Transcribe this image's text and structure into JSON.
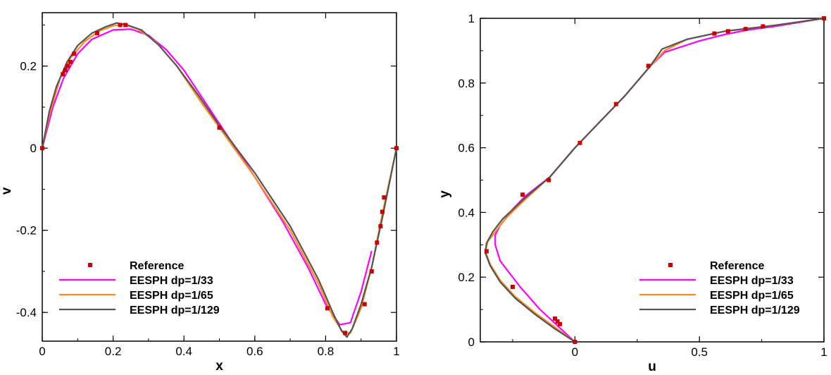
{
  "colors": {
    "reference": "#cc0000",
    "dp33": "#ff00ff",
    "dp65": "#ff8c1a",
    "dp129": "#555555"
  },
  "chart_data": [
    {
      "type": "line",
      "xlabel": "x",
      "ylabel": "v",
      "xlim": [
        0,
        1
      ],
      "ylim": [
        -0.47,
        0.33
      ],
      "xticks": [
        0,
        0.2,
        0.4,
        0.6,
        0.8,
        1
      ],
      "xtick_labels": [
        "0",
        "0.2",
        "0.4",
        "0.6",
        "0.8",
        "1"
      ],
      "yticks": [
        -0.4,
        -0.2,
        0,
        0.2
      ],
      "ytick_labels": [
        "-0.4",
        "-0.2",
        "0",
        "0.2"
      ],
      "legend_position": "bottom-left",
      "legend": [
        "Reference",
        "EESPH dp=1/33",
        "EESPH dp=1/65",
        "EESPH dp=1/129"
      ],
      "reference": {
        "x": [
          0,
          0.058,
          0.065,
          0.072,
          0.08,
          0.09,
          0.155,
          0.22,
          0.235,
          0.5,
          0.805,
          0.855,
          0.91,
          0.93,
          0.945,
          0.955,
          0.96,
          0.965,
          1.0
        ],
        "y": [
          0,
          0.18,
          0.19,
          0.2,
          0.21,
          0.23,
          0.28,
          0.3,
          0.3,
          0.05,
          -0.39,
          -0.45,
          -0.38,
          -0.3,
          -0.23,
          -0.19,
          -0.155,
          -0.12,
          0
        ]
      },
      "series": [
        {
          "name": "EESPH dp=1/33",
          "x": [
            0,
            0.03,
            0.06,
            0.1,
            0.14,
            0.2,
            0.25,
            0.3,
            0.35,
            0.4,
            0.5,
            0.6,
            0.68,
            0.75,
            0.8,
            0.84,
            0.87,
            0.9,
            0.93
          ],
          "y": [
            0,
            0.1,
            0.17,
            0.23,
            0.265,
            0.288,
            0.29,
            0.275,
            0.24,
            0.19,
            0.06,
            -0.07,
            -0.18,
            -0.29,
            -0.38,
            -0.43,
            -0.425,
            -0.35,
            -0.25
          ]
        },
        {
          "name": "EESPH dp=1/65",
          "x": [
            0,
            0.02,
            0.05,
            0.08,
            0.12,
            0.16,
            0.2,
            0.23,
            0.27,
            0.32,
            0.38,
            0.45,
            0.5,
            0.6,
            0.7,
            0.78,
            0.82,
            0.85,
            0.87,
            0.9,
            0.93,
            0.96,
            1.0
          ],
          "y": [
            0,
            0.08,
            0.17,
            0.22,
            0.26,
            0.285,
            0.298,
            0.302,
            0.29,
            0.26,
            0.2,
            0.11,
            0.05,
            -0.07,
            -0.2,
            -0.33,
            -0.41,
            -0.45,
            -0.45,
            -0.39,
            -0.29,
            -0.16,
            0
          ]
        },
        {
          "name": "EESPH dp=1/129",
          "x": [
            0,
            0.02,
            0.04,
            0.07,
            0.1,
            0.14,
            0.18,
            0.21,
            0.24,
            0.28,
            0.33,
            0.38,
            0.44,
            0.5,
            0.6,
            0.7,
            0.78,
            0.82,
            0.845,
            0.86,
            0.875,
            0.9,
            0.93,
            0.96,
            1.0
          ],
          "y": [
            0,
            0.09,
            0.15,
            0.21,
            0.25,
            0.28,
            0.296,
            0.305,
            0.3,
            0.288,
            0.25,
            0.2,
            0.13,
            0.055,
            -0.06,
            -0.19,
            -0.32,
            -0.4,
            -0.445,
            -0.46,
            -0.44,
            -0.38,
            -0.29,
            -0.17,
            0
          ]
        }
      ]
    },
    {
      "type": "line",
      "xlabel": "u",
      "ylabel": "y",
      "xlim": [
        -0.38,
        1.0
      ],
      "ylim": [
        0,
        1
      ],
      "xticks": [
        0,
        0.5,
        1
      ],
      "xtick_labels": [
        "0",
        "0.5",
        "1"
      ],
      "yticks": [
        0,
        0.2,
        0.4,
        0.6,
        0.8,
        1
      ],
      "ytick_labels": [
        "0",
        "0.2",
        "0.4",
        "0.6",
        "0.8",
        "1"
      ],
      "legend_position": "bottom-right",
      "legend": [
        "Reference",
        "EESPH dp=1/33",
        "EESPH dp=1/65",
        "EESPH dp=1/129"
      ],
      "reference": {
        "x": [
          1.0,
          0.755,
          0.685,
          0.615,
          0.56,
          0.295,
          0.165,
          0.02,
          -0.105,
          -0.21,
          -0.355,
          -0.25,
          -0.08,
          -0.07,
          -0.06,
          0
        ],
        "y": [
          1.0,
          0.975,
          0.967,
          0.96,
          0.953,
          0.853,
          0.735,
          0.615,
          0.5,
          0.455,
          0.28,
          0.17,
          0.072,
          0.063,
          0.055,
          0
        ]
      },
      "series": [
        {
          "name": "EESPH dp=1/33",
          "x": [
            0,
            -0.07,
            -0.14,
            -0.22,
            -0.3,
            -0.32,
            -0.32,
            -0.3,
            -0.25,
            -0.2,
            -0.1,
            0,
            0.1,
            0.2,
            0.3,
            0.36,
            0.5,
            0.6,
            0.7,
            0.8,
            1.0
          ],
          "y": [
            0,
            0.05,
            0.1,
            0.17,
            0.25,
            0.3,
            0.33,
            0.36,
            0.41,
            0.45,
            0.51,
            0.6,
            0.68,
            0.76,
            0.85,
            0.895,
            0.93,
            0.95,
            0.965,
            0.975,
            1.0
          ]
        },
        {
          "name": "EESPH dp=1/65",
          "x": [
            0,
            -0.08,
            -0.16,
            -0.24,
            -0.3,
            -0.34,
            -0.36,
            -0.35,
            -0.32,
            -0.28,
            -0.2,
            -0.1,
            0,
            0.1,
            0.2,
            0.3,
            0.36,
            0.45,
            0.6,
            0.8,
            1.0
          ],
          "y": [
            0,
            0.045,
            0.09,
            0.14,
            0.19,
            0.24,
            0.28,
            0.31,
            0.34,
            0.38,
            0.44,
            0.51,
            0.6,
            0.68,
            0.76,
            0.85,
            0.9,
            0.935,
            0.96,
            0.978,
            1.0
          ]
        },
        {
          "name": "EESPH dp=1/129",
          "x": [
            0,
            -0.08,
            -0.16,
            -0.24,
            -0.3,
            -0.34,
            -0.36,
            -0.355,
            -0.33,
            -0.29,
            -0.2,
            -0.1,
            0,
            0.1,
            0.2,
            0.3,
            0.35,
            0.45,
            0.6,
            0.8,
            1.0
          ],
          "y": [
            0,
            0.04,
            0.085,
            0.135,
            0.185,
            0.235,
            0.275,
            0.305,
            0.34,
            0.38,
            0.445,
            0.51,
            0.6,
            0.68,
            0.76,
            0.85,
            0.905,
            0.935,
            0.96,
            0.978,
            1.0
          ]
        }
      ]
    }
  ]
}
